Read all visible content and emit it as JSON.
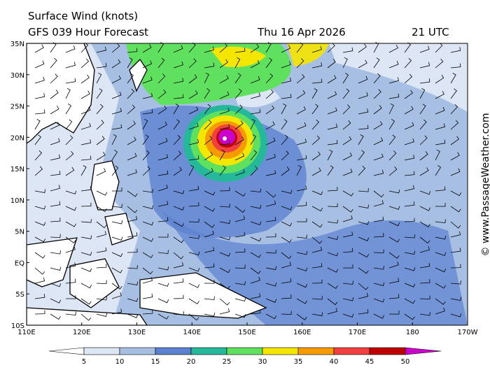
{
  "header": {
    "title": "Surface Wind (knots)",
    "model": "GFS 039 Hour Forecast",
    "date": "Thu 16 Apr 2026",
    "time": "21 UTC"
  },
  "credit": "© www.PassageWeather.com",
  "map": {
    "lat_labels": [
      "35N",
      "30N",
      "25N",
      "20N",
      "15N",
      "10N",
      "5N",
      "EQ",
      "5S",
      "10S"
    ],
    "lon_labels": [
      "110E",
      "120E",
      "130E",
      "140E",
      "150E",
      "160E",
      "170E",
      "180",
      "170W"
    ]
  },
  "colorbar": {
    "ticks": [
      5,
      10,
      15,
      20,
      25,
      30,
      35,
      40,
      45,
      50
    ],
    "colors": [
      "#ffffff",
      "#dde6f5",
      "#a8bfe4",
      "#5b82d0",
      "#26b89a",
      "#5fe05f",
      "#f5e600",
      "#f59a00",
      "#f04040",
      "#c00000",
      "#cc00cc"
    ]
  }
}
